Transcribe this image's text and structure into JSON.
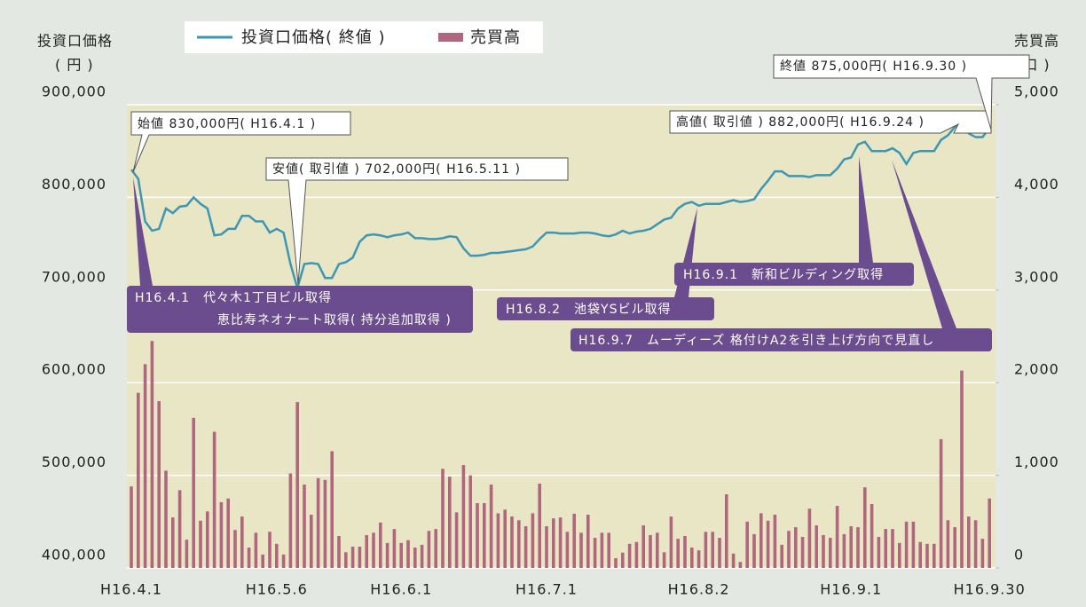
{
  "chart_data": {
    "type": "combo",
    "y_axis_label": [
      "投資口価格",
      "( 円 )"
    ],
    "y2_axis_label": [
      "売買高",
      "( 口 )"
    ],
    "categories": [
      "H16.4.1",
      null,
      null,
      null,
      null,
      null,
      null,
      null,
      null,
      null,
      null,
      null,
      null,
      null,
      null,
      null,
      null,
      null,
      null,
      null,
      null,
      "H16.5.6",
      null,
      null,
      null,
      null,
      null,
      null,
      null,
      null,
      null,
      null,
      null,
      null,
      null,
      null,
      null,
      null,
      null,
      "H16.6.1",
      null,
      null,
      null,
      null,
      null,
      null,
      null,
      null,
      null,
      null,
      null,
      null,
      null,
      null,
      null,
      null,
      null,
      null,
      null,
      null,
      "H16.7.1",
      null,
      null,
      null,
      null,
      null,
      null,
      null,
      null,
      null,
      null,
      null,
      null,
      null,
      null,
      null,
      null,
      null,
      null,
      null,
      null,
      null,
      "H16.8.2",
      null,
      null,
      null,
      null,
      null,
      null,
      null,
      null,
      null,
      null,
      null,
      null,
      null,
      null,
      null,
      null,
      null,
      null,
      null,
      null,
      null,
      "H16.9.1",
      null,
      null,
      null,
      null,
      null,
      null,
      null,
      null,
      null,
      null,
      null,
      null,
      null,
      null,
      null,
      null,
      null,
      null,
      null,
      "H16.9.30"
    ],
    "series": [
      {
        "name": "投資口価格( 終値 )",
        "type": "line",
        "axis": "y",
        "color": "#3d97b3",
        "values": [
          830000,
          820000,
          774000,
          764000,
          766000,
          788000,
          783000,
          790000,
          791000,
          800000,
          793000,
          788000,
          759000,
          760000,
          766000,
          766000,
          780000,
          780000,
          774000,
          774000,
          762000,
          766000,
          762000,
          728000,
          702000,
          728000,
          729000,
          728000,
          713000,
          713000,
          728000,
          730000,
          735000,
          752000,
          759000,
          760000,
          759000,
          757000,
          759000,
          760000,
          762000,
          756000,
          756000,
          755000,
          755000,
          756000,
          758000,
          757000,
          745000,
          737000,
          737000,
          738000,
          740000,
          740000,
          741000,
          742000,
          743000,
          744000,
          747000,
          755000,
          762000,
          762000,
          761000,
          761000,
          761000,
          762000,
          762000,
          761000,
          759000,
          758000,
          760000,
          764000,
          761000,
          763000,
          764000,
          766000,
          771000,
          776000,
          778000,
          788000,
          793000,
          795000,
          791000,
          793000,
          793000,
          793000,
          795000,
          797000,
          795000,
          796000,
          798000,
          809000,
          818000,
          828000,
          828000,
          823000,
          823000,
          823000,
          822000,
          824000,
          824000,
          824000,
          831000,
          841000,
          843000,
          857000,
          860000,
          850000,
          850000,
          850000,
          853000,
          848000,
          836000,
          848000,
          850000,
          850000,
          850000,
          862000,
          867000,
          876000,
          882000,
          869000,
          865000,
          865000,
          875000
        ]
      },
      {
        "name": "売買高",
        "type": "bar",
        "axis": "y2",
        "color": "#b0667d",
        "values": [
          880,
          1890,
          2200,
          2450,
          1800,
          1050,
          545,
          840,
          305,
          1620,
          510,
          610,
          1470,
          710,
          750,
          410,
          555,
          220,
          380,
          145,
          390,
          260,
          145,
          1020,
          1790,
          900,
          575,
          970,
          950,
          1260,
          345,
          170,
          230,
          230,
          355,
          380,
          490,
          270,
          420,
          270,
          300,
          220,
          250,
          400,
          420,
          1070,
          985,
          600,
          1110,
          1000,
          700,
          700,
          900,
          590,
          630,
          555,
          515,
          450,
          590,
          910,
          450,
          535,
          545,
          390,
          585,
          380,
          575,
          325,
          380,
          380,
          105,
          165,
          260,
          280,
          460,
          355,
          380,
          170,
          555,
          315,
          345,
          220,
          190,
          390,
          390,
          325,
          795,
          155,
          65,
          500,
          365,
          590,
          510,
          575,
          250,
          400,
          440,
          335,
          640,
          460,
          355,
          325,
          670,
          365,
          450,
          440,
          870,
          690,
          335,
          420,
          420,
          270,
          500,
          500,
          280,
          260,
          260,
          1390,
          515,
          440,
          2130,
          555,
          515,
          315,
          750
        ]
      }
    ],
    "ylim": [
      400000,
      900000
    ],
    "yticks": [
      {
        "value": 400000,
        "label": "400,000"
      },
      {
        "value": 500000,
        "label": "500,000"
      },
      {
        "value": 600000,
        "label": "600,000"
      },
      {
        "value": 700000,
        "label": "700,000"
      },
      {
        "value": 800000,
        "label": "800,000"
      },
      {
        "value": 900000,
        "label": "900,000"
      }
    ],
    "y2lim": [
      0,
      5000
    ],
    "y2ticks": [
      0,
      {
        "value": 1000,
        "label": "1,000"
      },
      {
        "value": 2000,
        "label": "2,000"
      },
      {
        "value": 3000,
        "label": "3,000"
      },
      {
        "value": 4000,
        "label": "4,000"
      },
      {
        "value": 5000,
        "label": "5,000"
      }
    ],
    "grid": true,
    "annotations": [
      "始値 830,000円( H16.4.1 )",
      "安値( 取引値 ) 702,000円( H16.5.11 )",
      "高値( 取引値 ) 882,000円( H16.9.24 )",
      "終値 875,000円( H16.9.30 )"
    ],
    "events": [
      [
        "H16.4.1　代々木1丁目ビル取得",
        "恵比寿ネオナート取得( 持分追加取得 )"
      ],
      [
        "H16.8.2　池袋YSビル取得"
      ],
      [
        "H16.9.1　新和ビルディング取得"
      ],
      [
        "H16.9.7　ムーディーズ 格付けA2を引き上げ方向で見直し"
      ]
    ]
  }
}
